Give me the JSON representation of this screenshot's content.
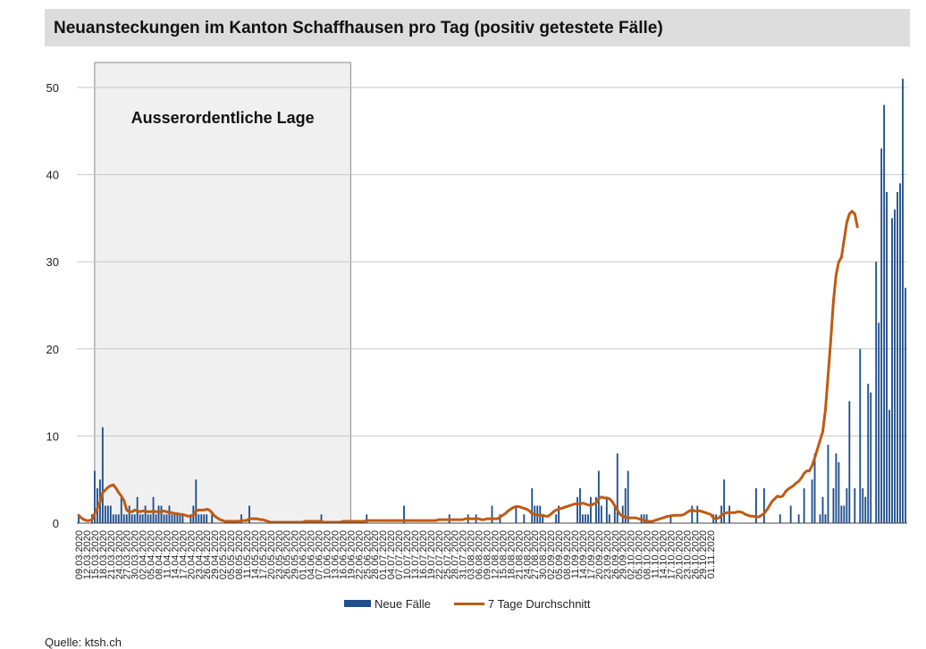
{
  "chart_data": {
    "type": "bar",
    "title": "Neuansteckungen im Kanton Schaffhausen pro Tag (positiv getestete Fälle)",
    "annotation": "Ausserordentliche Lage",
    "annotation_range": [
      "16.03.2020",
      "19.06.2020"
    ],
    "ylim": [
      0,
      50
    ],
    "yticks": [
      0,
      10,
      20,
      30,
      40,
      50
    ],
    "grid": true,
    "legend_position": "bottom",
    "start_date": "09.03.2020",
    "tick_labels": [
      "09.03.2020",
      "12.03.2020",
      "15.03.2020",
      "18.03.2020",
      "21.03.2020",
      "24.03.2020",
      "27.03.2020",
      "30.03.2020",
      "02.04.2020",
      "05.04.2020",
      "08.04.2020",
      "11.04.2020",
      "14.04.2020",
      "17.04.2020",
      "20.04.2020",
      "23.04.2020",
      "26.04.2020",
      "29.04.2020",
      "02.05.2020",
      "05.05.2020",
      "08.05.2020",
      "11.05.2020",
      "14.05.2020",
      "17.05.2020",
      "20.05.2020",
      "23.05.2020",
      "26.05.2020",
      "29.05.2020",
      "01.06.2020",
      "04.06.2020",
      "07.06.2020",
      "10.06.2020",
      "13.06.2020",
      "16.06.2020",
      "19.06.2020",
      "22.06.2020",
      "25.06.2020",
      "28.06.2020",
      "01.07.2020",
      "04.07.2020",
      "07.07.2020",
      "10.07.2020",
      "13.07.2020",
      "16.07.2020",
      "19.07.2020",
      "22.07.2020",
      "25.07.2020",
      "28.07.2020",
      "31.07.2020",
      "03.08.2020",
      "06.08.2020",
      "09.08.2020",
      "12.08.2020",
      "15.08.2020",
      "18.08.2020",
      "21.08.2020",
      "24.08.2020",
      "27.08.2020",
      "30.08.2020",
      "02.09.2020",
      "05.09.2020",
      "08.09.2020",
      "11.09.2020",
      "14.09.2020",
      "17.09.2020",
      "20.09.2020",
      "23.09.2020",
      "26.09.2020",
      "29.09.2020",
      "02.10.2020",
      "05.10.2020",
      "08.10.2020",
      "11.10.2020",
      "14.10.2020",
      "17.10.2020",
      "20.10.2020",
      "23.10.2020",
      "26.10.2020",
      "29.10.2020",
      "01.11.2020"
    ],
    "series": [
      {
        "name": "Neue Fälle",
        "kind": "bar",
        "color": "#1f4e8c",
        "values": [
          1,
          0,
          0,
          0,
          0,
          1,
          6,
          4,
          5,
          11,
          2,
          2,
          2,
          1,
          1,
          1,
          3,
          1,
          1,
          2,
          1,
          1,
          3,
          1,
          1,
          2,
          1,
          1,
          3,
          1,
          2,
          2,
          1,
          1,
          2,
          1,
          1,
          1,
          1,
          1,
          0,
          0,
          1,
          2,
          5,
          1,
          1,
          1,
          1,
          0,
          1,
          0,
          0,
          0,
          0,
          0,
          0,
          0,
          0,
          0,
          0,
          1,
          0,
          0,
          2,
          0,
          0,
          0,
          0,
          0,
          0,
          0,
          0,
          0,
          0,
          0,
          0,
          0,
          0,
          0,
          0,
          0,
          0,
          0,
          0,
          0,
          0,
          0,
          0,
          0,
          0,
          1,
          0,
          0,
          0,
          0,
          0,
          0,
          0,
          0,
          0,
          0,
          0,
          0,
          0,
          0,
          0,
          0,
          1,
          0,
          0,
          0,
          0,
          0,
          0,
          0,
          0,
          0,
          0,
          0,
          0,
          0,
          2,
          0,
          0,
          0,
          0,
          0,
          0,
          0,
          0,
          0,
          0,
          0,
          0,
          0,
          0,
          0,
          0,
          1,
          0,
          0,
          0,
          0,
          0,
          0,
          1,
          0,
          0,
          1,
          0,
          0,
          0,
          0,
          0,
          2,
          0,
          0,
          1,
          0,
          0,
          0,
          0,
          0,
          2,
          0,
          0,
          1,
          0,
          0,
          4,
          2,
          2,
          2,
          1,
          0,
          0,
          0,
          0,
          1,
          2,
          0,
          0,
          0,
          0,
          0,
          0,
          3,
          4,
          1,
          1,
          1,
          3,
          0,
          3,
          6,
          2,
          0,
          3,
          1,
          0,
          2,
          8,
          0,
          2,
          4,
          6,
          0,
          0,
          0,
          0,
          1,
          1,
          1,
          0,
          0,
          0,
          0,
          0,
          0,
          0,
          0,
          1,
          0,
          0,
          0,
          0,
          0,
          0,
          0,
          2,
          0,
          2,
          0,
          0,
          0,
          0,
          0,
          1,
          1,
          0,
          2,
          5,
          0,
          2,
          0,
          0,
          0,
          0,
          0,
          0,
          0,
          0,
          0,
          4,
          0,
          0,
          4,
          0,
          0,
          0,
          0,
          0,
          1,
          0,
          0,
          0,
          2,
          0,
          0,
          1,
          0,
          4,
          0,
          0,
          5,
          8,
          0,
          1,
          3,
          1,
          9,
          0,
          4,
          8,
          7,
          2,
          2,
          4,
          14,
          0,
          4,
          0,
          20,
          4,
          3,
          16,
          15,
          0,
          30,
          23,
          43,
          48,
          38,
          13,
          35,
          36,
          38,
          39,
          51,
          27
        ]
      },
      {
        "name": "7 Tage Durchschnitt",
        "kind": "line",
        "color": "#c05a12",
        "values": [
          0.9,
          0.6,
          0.4,
          0.3,
          0.3,
          0.4,
          1.1,
          1.7,
          2.4,
          3.5,
          3.8,
          4.1,
          4.3,
          4.4,
          4.0,
          3.5,
          3.1,
          2.6,
          1.5,
          1.3,
          1.3,
          1.5,
          1.4,
          1.3,
          1.4,
          1.4,
          1.3,
          1.3,
          1.4,
          1.3,
          1.3,
          1.3,
          1.4,
          1.3,
          1.2,
          1.2,
          1.1,
          1.1,
          1.0,
          1.0,
          0.9,
          0.8,
          0.8,
          0.9,
          1.4,
          1.5,
          1.5,
          1.5,
          1.6,
          1.5,
          1.2,
          0.8,
          0.6,
          0.4,
          0.3,
          0.2,
          0.2,
          0.2,
          0.2,
          0.2,
          0.2,
          0.3,
          0.3,
          0.3,
          0.5,
          0.5,
          0.5,
          0.5,
          0.4,
          0.4,
          0.3,
          0.2,
          0.1,
          0.1,
          0.1,
          0.1,
          0.1,
          0.1,
          0.1,
          0.1,
          0.1,
          0.1,
          0.1,
          0.1,
          0.1,
          0.2,
          0.2,
          0.2,
          0.2,
          0.2,
          0.2,
          0.2,
          0.1,
          0.1,
          0.1,
          0.1,
          0.1,
          0.1,
          0.1,
          0.2,
          0.2,
          0.2,
          0.2,
          0.2,
          0.2,
          0.2,
          0.2,
          0.2,
          0.3,
          0.3,
          0.3,
          0.3,
          0.3,
          0.3,
          0.3,
          0.3,
          0.3,
          0.3,
          0.3,
          0.3,
          0.3,
          0.3,
          0.3,
          0.3,
          0.3,
          0.3,
          0.3,
          0.3,
          0.3,
          0.3,
          0.3,
          0.3,
          0.3,
          0.3,
          0.3,
          0.4,
          0.4,
          0.4,
          0.4,
          0.4,
          0.4,
          0.4,
          0.4,
          0.4,
          0.4,
          0.5,
          0.5,
          0.5,
          0.5,
          0.5,
          0.5,
          0.4,
          0.4,
          0.5,
          0.5,
          0.5,
          0.5,
          0.5,
          0.7,
          0.9,
          1.1,
          1.4,
          1.6,
          1.8,
          1.9,
          1.9,
          1.8,
          1.7,
          1.6,
          1.4,
          1.1,
          1.0,
          0.9,
          0.9,
          0.9,
          0.8,
          0.8,
          1.0,
          1.3,
          1.5,
          1.6,
          1.7,
          1.8,
          1.9,
          2.0,
          2.1,
          2.2,
          2.2,
          2.2,
          2.3,
          2.2,
          2.1,
          2.0,
          2.2,
          2.3,
          2.8,
          3.0,
          2.9,
          2.9,
          2.8,
          2.5,
          2.0,
          1.5,
          1.0,
          0.8,
          0.7,
          0.6,
          0.6,
          0.6,
          0.6,
          0.5,
          0.4,
          0.3,
          0.2,
          0.2,
          0.2,
          0.3,
          0.4,
          0.5,
          0.6,
          0.7,
          0.8,
          0.8,
          0.9,
          0.9,
          0.9,
          0.9,
          1.0,
          1.2,
          1.4,
          1.5,
          1.4,
          1.4,
          1.4,
          1.3,
          1.2,
          1.1,
          1.0,
          0.6,
          0.5,
          0.6,
          0.9,
          1.1,
          1.2,
          1.2,
          1.2,
          1.2,
          1.3,
          1.3,
          1.2,
          1.0,
          0.9,
          0.8,
          0.8,
          0.7,
          0.7,
          0.9,
          1.1,
          1.5,
          2.0,
          2.5,
          2.8,
          3.1,
          3.0,
          3.1,
          3.6,
          3.9,
          4.1,
          4.3,
          4.6,
          4.8,
          5.2,
          5.7,
          6.0,
          6.0,
          6.6,
          7.5,
          8.5,
          9.5,
          10.5,
          13.0,
          17.0,
          21.0,
          25.5,
          28.5,
          30.0,
          30.5,
          32.5,
          34.5,
          35.5,
          35.8,
          35.5,
          34.0
        ]
      }
    ]
  },
  "legend": {
    "bar_label": "Neue Fälle",
    "line_label": "7 Tage Durchschnitt"
  },
  "footnote": "Quelle: ktsh.ch"
}
